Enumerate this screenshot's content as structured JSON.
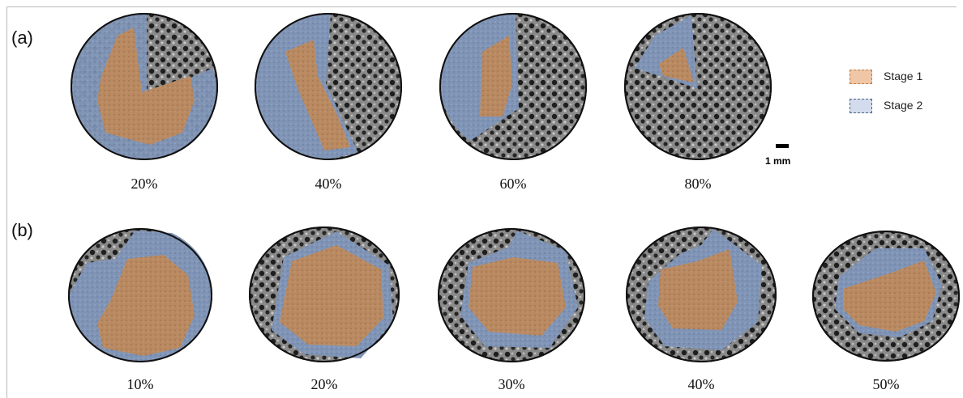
{
  "rows": {
    "a": {
      "label": "(a)",
      "captions": [
        "20%",
        "40%",
        "60%",
        "80%"
      ]
    },
    "b": {
      "label": "(b)",
      "captions": [
        "10%",
        "20%",
        "30%",
        "40%",
        "50%"
      ]
    }
  },
  "legend": {
    "stage1": {
      "label": "Stage 1",
      "color": "#e8b48a"
    },
    "stage2": {
      "label": "Stage 2",
      "color": "#c9d6ea"
    }
  },
  "scale_bar": {
    "label": "1 mm"
  },
  "colors": {
    "porous": "#3a3a3a",
    "stage1_fill": "#b9855c",
    "stage2_fill": "#7d93b8",
    "outline": "#111111"
  }
}
